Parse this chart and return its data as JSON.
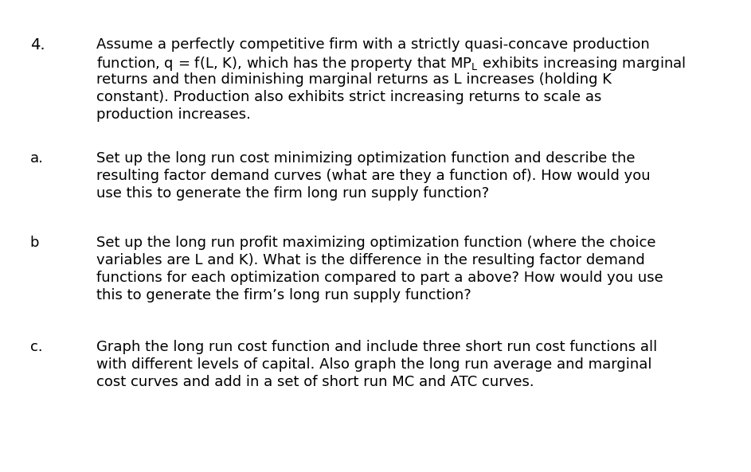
{
  "background_color": "#ffffff",
  "font_size": 13.0,
  "label_fontsize_4": 14.0,
  "items": [
    {
      "label": "4.",
      "label_fx": 0.04,
      "label_fy": 0.92,
      "lines": [
        {
          "text": "Assume a perfectly competitive firm with a strictly quasi-concave production",
          "fx": 0.128,
          "fy": 0.92
        },
        {
          "text": "function, q = f(L, K), which has the property that $\\mathregular{MP_L}$ exhibits increasing marginal",
          "fx": 0.128,
          "fy": 0.883
        },
        {
          "text": "returns and then diminishing marginal returns as L increases (holding K",
          "fx": 0.128,
          "fy": 0.846
        },
        {
          "text": "constant). Production also exhibits strict increasing returns to scale as",
          "fx": 0.128,
          "fy": 0.809
        },
        {
          "text": "production increases.",
          "fx": 0.128,
          "fy": 0.772
        }
      ]
    },
    {
      "label": "a.",
      "label_fx": 0.04,
      "label_fy": 0.68,
      "lines": [
        {
          "text": "Set up the long run cost minimizing optimization function and describe the",
          "fx": 0.128,
          "fy": 0.68
        },
        {
          "text": "resulting factor demand curves (what are they a function of). How would you",
          "fx": 0.128,
          "fy": 0.643
        },
        {
          "text": "use this to generate the firm long run supply function?",
          "fx": 0.128,
          "fy": 0.606
        }
      ]
    },
    {
      "label": "b",
      "label_fx": 0.04,
      "label_fy": 0.5,
      "lines": [
        {
          "text": "Set up the long run profit maximizing optimization function (where the choice",
          "fx": 0.128,
          "fy": 0.5
        },
        {
          "text": "variables are L and K). What is the difference in the resulting factor demand",
          "fx": 0.128,
          "fy": 0.463
        },
        {
          "text": "functions for each optimization compared to part a above? How would you use",
          "fx": 0.128,
          "fy": 0.426
        },
        {
          "text": "this to generate the firm’s long run supply function?",
          "fx": 0.128,
          "fy": 0.389
        }
      ]
    },
    {
      "label": "c.",
      "label_fx": 0.04,
      "label_fy": 0.28,
      "lines": [
        {
          "text": "Graph the long run cost function and include three short run cost functions all",
          "fx": 0.128,
          "fy": 0.28
        },
        {
          "text": "with different levels of capital. Also graph the long run average and marginal",
          "fx": 0.128,
          "fy": 0.243
        },
        {
          "text": "cost curves and add in a set of short run MC and ATC curves.",
          "fx": 0.128,
          "fy": 0.206
        }
      ]
    }
  ]
}
